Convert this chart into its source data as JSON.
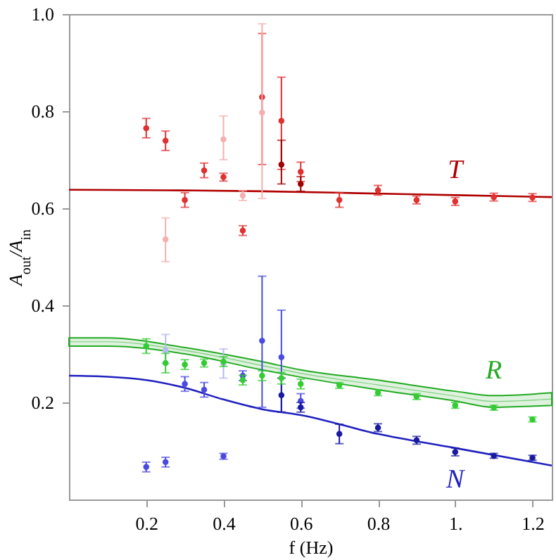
{
  "chart_data": {
    "type": "scatter",
    "xlabel": "f (Hz)",
    "ylabel": "A$_{out}$/A$_{in}$",
    "xlim": [
      0,
      1.25
    ],
    "ylim": [
      0,
      1
    ],
    "xticks": [
      0.2,
      0.4,
      0.6,
      0.8,
      {
        "value": 1,
        "label": "1."
      },
      1.2
    ],
    "yticks": [
      0.2,
      0.4,
      0.6,
      0.8,
      {
        "value": 1,
        "label": "1.0"
      }
    ],
    "marker": "circle",
    "grid": false,
    "series": [
      {
        "type": "line",
        "marker": "none",
        "name": "T",
        "color": "#b00000",
        "x": [
          0,
          0.25,
          0.5,
          0.75,
          1,
          1.25
        ],
        "values": [
          0.638,
          0.637,
          0.635,
          0.631,
          0.627,
          0.623
        ]
      },
      {
        "type": "line",
        "marker": "none",
        "name": "R",
        "color": "#22aa22",
        "x": [
          0,
          0.1,
          0.3,
          0.5,
          0.6,
          0.8,
          1,
          1.1,
          1.25
        ],
        "values": [
          0.325,
          0.325,
          0.307,
          0.276,
          0.26,
          0.236,
          0.213,
          0.202,
          0.207
        ],
        "lower": [
          0.316,
          0.316,
          0.3,
          0.267,
          0.252,
          0.226,
          0.203,
          0.19,
          0.194
        ],
        "upper": [
          0.333,
          0.333,
          0.313,
          0.284,
          0.267,
          0.246,
          0.223,
          0.214,
          0.22
        ]
      },
      {
        "type": "line",
        "marker": "none",
        "name": "N",
        "color": "#2020c0",
        "x": [
          0,
          0.1,
          0.2,
          0.3,
          0.4,
          0.5,
          0.6,
          0.8,
          1,
          1.25
        ],
        "values": [
          0.255,
          0.253,
          0.246,
          0.23,
          0.206,
          0.186,
          0.174,
          0.135,
          0.106,
          0.07
        ]
      },
      {
        "color": "#e03030",
        "x": [
          0.2,
          0.25,
          0.3,
          0.35,
          0.4,
          0.45,
          0.5,
          0.55,
          0.6,
          0.7,
          0.8,
          0.9,
          1,
          1.1,
          1.2
        ],
        "values": [
          0.765,
          0.739,
          0.617,
          0.678,
          0.664,
          0.554,
          0.829,
          0.78,
          0.675,
          0.617,
          0.637,
          0.617,
          0.614,
          0.623,
          0.622
        ],
        "errors": [
          0.02,
          0.02,
          0.015,
          0.015,
          0.008,
          0.01,
          [
            0.69,
            0.96
          ],
          [
            0.68,
            0.87
          ],
          0.02,
          0.015,
          0.01,
          0.008,
          0.008,
          0.008,
          0.008
        ]
      },
      {
        "color": "#a00000",
        "x": [
          0.55,
          0.6
        ],
        "values": [
          0.69,
          0.65
        ],
        "errors": [
          [
            0.65,
            0.74
          ],
          0.015
        ]
      },
      {
        "color": "#f4b0b0",
        "x": [
          0.25,
          0.4,
          0.45,
          0.5
        ],
        "values": [
          0.536,
          0.742,
          0.626,
          0.797
        ],
        "errors": [
          [
            0.49,
            0.58
          ],
          [
            0.7,
            0.79
          ],
          0.01,
          [
            0.62,
            0.98
          ]
        ]
      },
      {
        "color": "#4a4ae0",
        "x": [
          0.2,
          0.25,
          0.3,
          0.35,
          0.4,
          0.45,
          0.5,
          0.55,
          0.6
        ],
        "values": [
          0.067,
          0.077,
          0.238,
          0.226,
          0.089,
          0.255,
          0.327,
          0.293,
          0.203
        ],
        "errors": [
          0.01,
          0.01,
          0.015,
          0.015,
          0.006,
          0.01,
          [
            0.19,
            0.46
          ],
          [
            0.18,
            0.39
          ],
          0.015
        ]
      },
      {
        "color": "#1a1aa0",
        "x": [
          0.55,
          0.6,
          0.7,
          0.8,
          0.9,
          1,
          1.1,
          1.2
        ],
        "values": [
          0.215,
          0.19,
          0.135,
          0.148,
          0.122,
          0.098,
          0.09,
          0.086
        ],
        "errors": [
          [
            0.18,
            0.25
          ],
          0.01,
          0.02,
          0.008,
          0.008,
          0.008,
          0.005,
          0.005
        ]
      },
      {
        "color": "#b8b8f0",
        "x": [
          0.25,
          0.4
        ],
        "values": [
          0.307,
          0.28
        ],
        "errors": [
          [
            0.28,
            0.34
          ],
          [
            0.25,
            0.31
          ]
        ]
      },
      {
        "color": "#33cc33",
        "x": [
          0.2,
          0.25,
          0.3,
          0.35,
          0.4,
          0.45,
          0.5,
          0.55,
          0.6,
          0.7,
          0.8,
          0.9,
          1,
          1.1,
          1.2
        ],
        "values": [
          0.316,
          0.281,
          0.278,
          0.281,
          0.284,
          0.246,
          0.255,
          0.25,
          0.238,
          0.235,
          0.22,
          0.212,
          0.194,
          0.189,
          0.165
        ],
        "errors": [
          0.015,
          0.02,
          0.01,
          0.008,
          0.01,
          0.01,
          0.01,
          0.012,
          0.01,
          0.006,
          0.006,
          0.006,
          0.006,
          0.005,
          0.005
        ]
      }
    ]
  }
}
